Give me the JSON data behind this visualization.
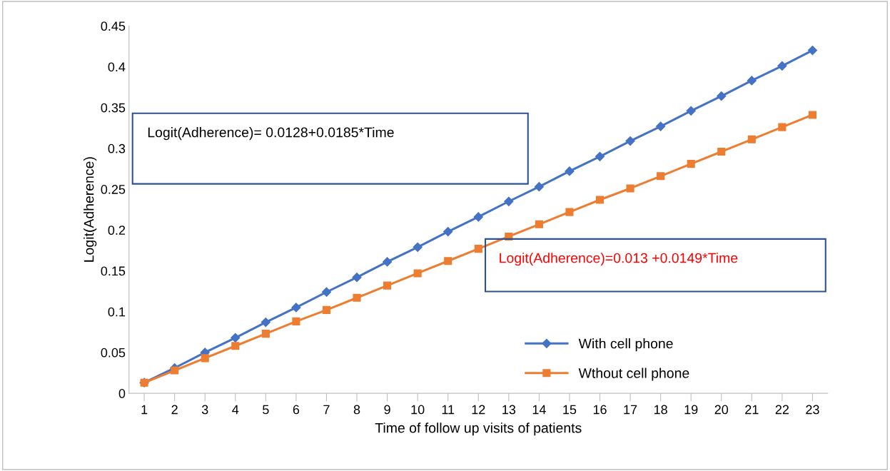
{
  "chart_data": {
    "type": "line",
    "xlabel": "Time of follow up visits of patients",
    "ylabel": "Logit(Adherence)",
    "categories": [
      "1",
      "2",
      "3",
      "4",
      "5",
      "6",
      "7",
      "8",
      "9",
      "10",
      "11",
      "12",
      "13",
      "14",
      "15",
      "16",
      "17",
      "18",
      "19",
      "20",
      "21",
      "22",
      "23"
    ],
    "series": [
      {
        "name": "With cell phone",
        "color": "#4472c4",
        "marker": "diamond",
        "values": [
          0.013,
          0.031,
          0.05,
          0.068,
          0.087,
          0.105,
          0.124,
          0.142,
          0.161,
          0.179,
          0.198,
          0.216,
          0.235,
          0.253,
          0.272,
          0.29,
          0.309,
          0.327,
          0.346,
          0.364,
          0.383,
          0.401,
          0.42
        ]
      },
      {
        "name": "Wthout cell phone",
        "color": "#ed7d31",
        "marker": "square",
        "values": [
          0.013,
          0.028,
          0.043,
          0.058,
          0.073,
          0.088,
          0.102,
          0.117,
          0.132,
          0.147,
          0.162,
          0.177,
          0.192,
          0.207,
          0.222,
          0.237,
          0.251,
          0.266,
          0.281,
          0.296,
          0.311,
          0.326,
          0.341
        ]
      }
    ],
    "ylim": [
      0,
      0.45
    ],
    "yticks": [
      0,
      0.05,
      0.1,
      0.15,
      0.2,
      0.25,
      0.3,
      0.35,
      0.4,
      0.45
    ],
    "grid": false,
    "legend": "bottom",
    "annotations": [
      "Logit(Adherence)= 0.0128+0.0185*Time",
      "Logit(Adherence)=0.013 +0.0149*Time"
    ]
  }
}
